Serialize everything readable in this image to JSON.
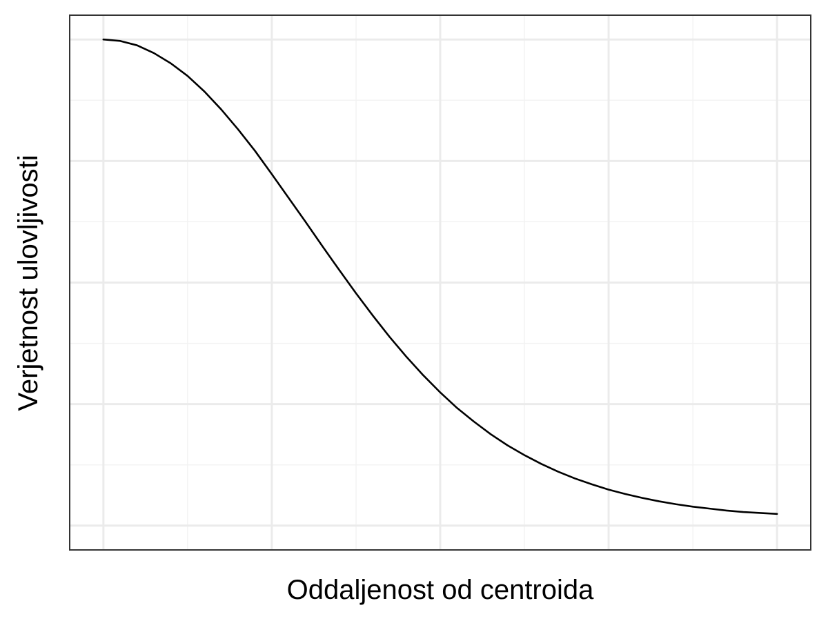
{
  "chart_data": {
    "type": "line",
    "title": "",
    "xlabel": "Oddaljenost od centroida",
    "ylabel": "Verjetnost ulovljivosti",
    "x_tick_labels": [],
    "y_tick_labels": [],
    "xlim": [
      -0.2,
      4.2
    ],
    "ylim": [
      -0.05,
      1.05
    ],
    "x_major_ticks": [
      0,
      1,
      2,
      3,
      4
    ],
    "x_minor_ticks": [
      0.5,
      1.5,
      2.5,
      3.5
    ],
    "y_major_ticks": [
      0,
      0.25,
      0.5,
      0.75,
      1
    ],
    "y_minor_ticks": [
      0.125,
      0.375,
      0.625,
      0.875
    ],
    "grid": true,
    "legend": "none",
    "series": [
      {
        "x": [
          0,
          0.1,
          0.2,
          0.3,
          0.4,
          0.5,
          0.6,
          0.7,
          0.8,
          0.9,
          1.0,
          1.1,
          1.2,
          1.3,
          1.4,
          1.5,
          1.6,
          1.7,
          1.8,
          1.9,
          2.0,
          2.1,
          2.2,
          2.3,
          2.4,
          2.5,
          2.6,
          2.7,
          2.8,
          2.9,
          3.0,
          3.1,
          3.2,
          3.3,
          3.4,
          3.5,
          3.6,
          3.7,
          3.8,
          3.9,
          4.0
        ],
        "y": [
          1.0,
          0.997,
          0.988,
          0.972,
          0.951,
          0.925,
          0.893,
          0.856,
          0.815,
          0.771,
          0.723,
          0.674,
          0.625,
          0.575,
          0.526,
          0.478,
          0.432,
          0.388,
          0.347,
          0.309,
          0.274,
          0.242,
          0.214,
          0.188,
          0.165,
          0.145,
          0.127,
          0.111,
          0.097,
          0.085,
          0.074,
          0.065,
          0.057,
          0.05,
          0.044,
          0.039,
          0.035,
          0.031,
          0.028,
          0.026,
          0.024
        ],
        "color": "#000000"
      }
    ],
    "colors": {
      "grid_major": "#EBEBEB",
      "grid_minor": "#F3F3F3",
      "panel_border": "#333333",
      "background": "#FFFFFF",
      "line": "#000000"
    }
  }
}
